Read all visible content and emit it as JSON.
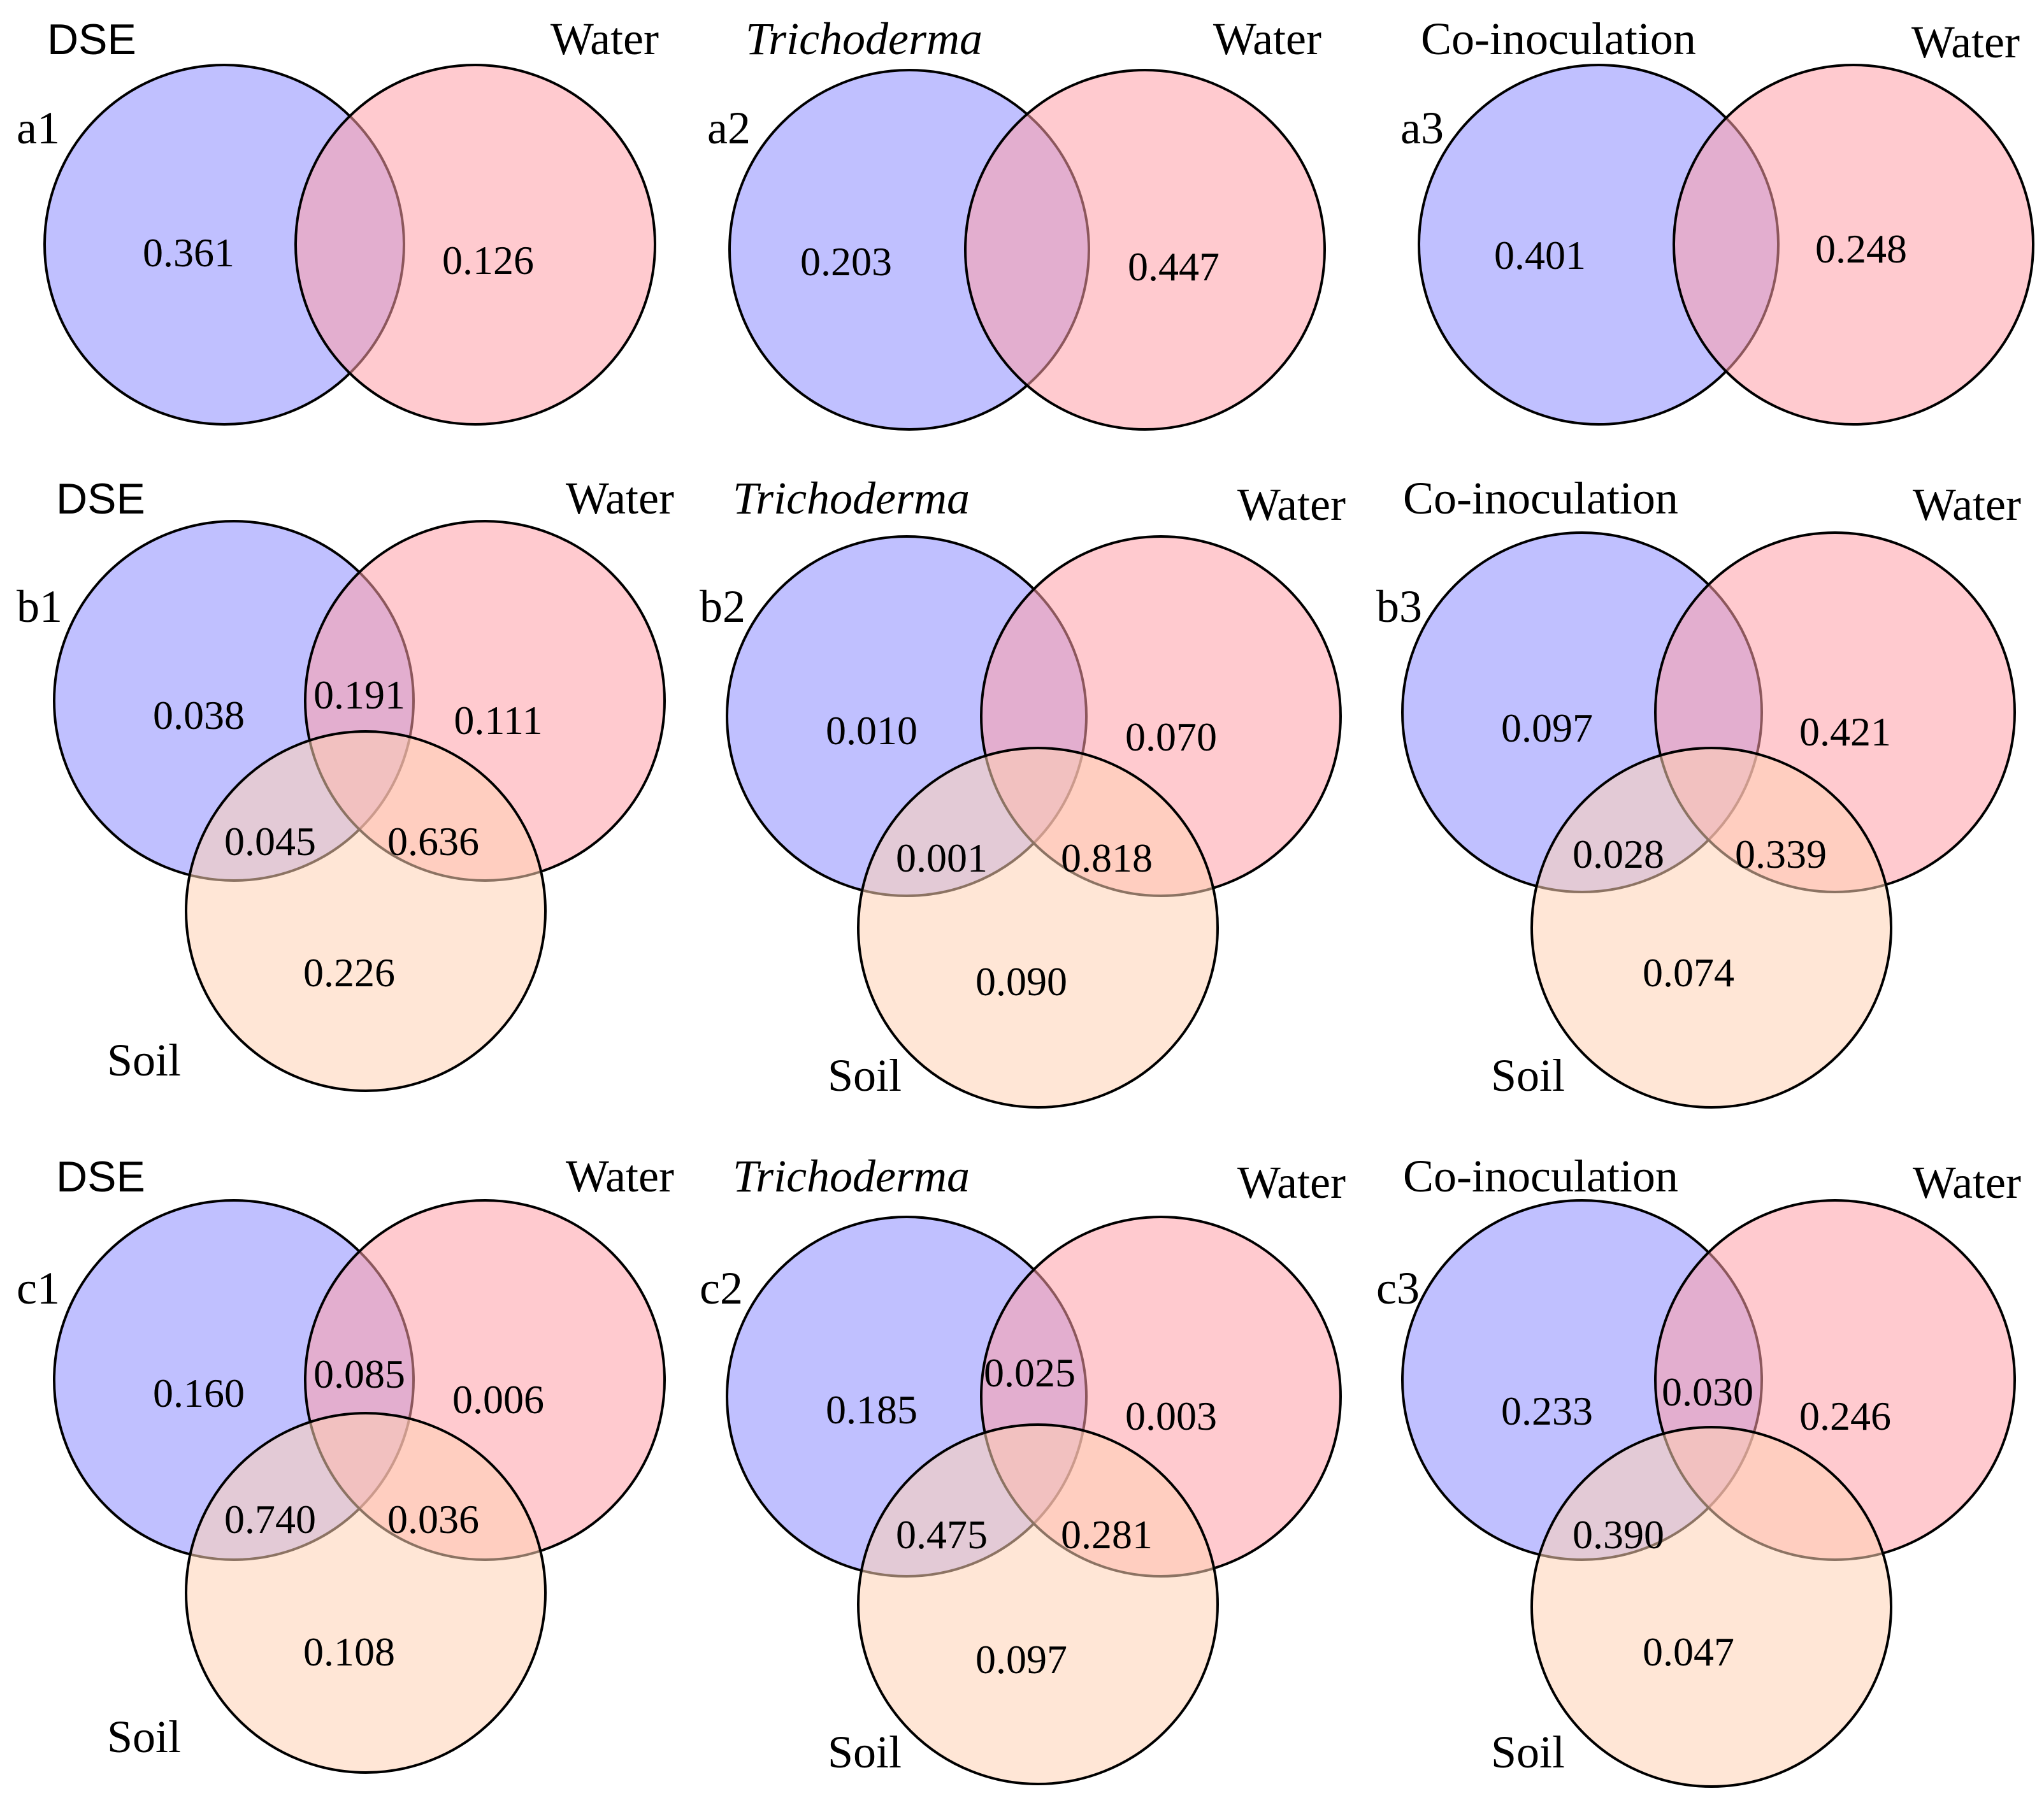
{
  "colors": {
    "treatment": "#8c8cff",
    "water": "#ff9fa8",
    "soil": "#ffd2b4",
    "stroke": "#000000"
  },
  "panels": [
    {
      "id": "a1",
      "panel_label": "a1",
      "treatment": "DSE",
      "water": "Water",
      "soil": null,
      "values": {
        "treatment_only": "0.361",
        "water_only": "0.126"
      }
    },
    {
      "id": "a2",
      "panel_label": "a2",
      "treatment": "Trichoderma",
      "water": "Water",
      "soil": null,
      "values": {
        "treatment_only": "0.203",
        "water_only": "0.447"
      }
    },
    {
      "id": "a3",
      "panel_label": "a3",
      "treatment": "Co-inoculation",
      "water": "Water",
      "soil": null,
      "values": {
        "treatment_only": "0.401",
        "water_only": "0.248"
      }
    },
    {
      "id": "b1",
      "panel_label": "b1",
      "treatment": "DSE",
      "water": "Water",
      "soil": "Soil",
      "values": {
        "treatment_only": "0.038",
        "treatment_water": "0.191",
        "water_only": "0.111",
        "treatment_soil": "0.045",
        "water_soil": "0.636",
        "soil_only": "0.226"
      }
    },
    {
      "id": "b2",
      "panel_label": "b2",
      "treatment": "Trichoderma",
      "water": "Water",
      "soil": "Soil",
      "values": {
        "treatment_only": "0.010",
        "water_only": "0.070",
        "treatment_soil": "0.001",
        "water_soil": "0.818",
        "soil_only": "0.090"
      }
    },
    {
      "id": "b3",
      "panel_label": "b3",
      "treatment": "Co-inoculation",
      "water": "Water",
      "soil": "Soil",
      "values": {
        "treatment_only": "0.097",
        "water_only": "0.421",
        "treatment_soil": "0.028",
        "water_soil": "0.339",
        "soil_only": "0.074"
      }
    },
    {
      "id": "c1",
      "panel_label": "c1",
      "treatment": "DSE",
      "water": "Water",
      "soil": "Soil",
      "values": {
        "treatment_only": "0.160",
        "treatment_water": "0.085",
        "water_only": "0.006",
        "treatment_soil": "0.740",
        "water_soil": "0.036",
        "soil_only": "0.108"
      }
    },
    {
      "id": "c2",
      "panel_label": "c2",
      "treatment": "Trichoderma",
      "water": "Water",
      "soil": "Soil",
      "values": {
        "treatment_only": "0.185",
        "treatment_water": "0.025",
        "water_only": "0.003",
        "treatment_soil": "0.475",
        "water_soil": "0.281",
        "soil_only": "0.097"
      }
    },
    {
      "id": "c3",
      "panel_label": "c3",
      "treatment": "Co-inoculation",
      "water": "Water",
      "soil": "Soil",
      "values": {
        "treatment_only": "0.233",
        "treatment_water": "0.030",
        "water_only": "0.246",
        "treatment_soil": "0.390",
        "soil_only": "0.047"
      }
    }
  ]
}
